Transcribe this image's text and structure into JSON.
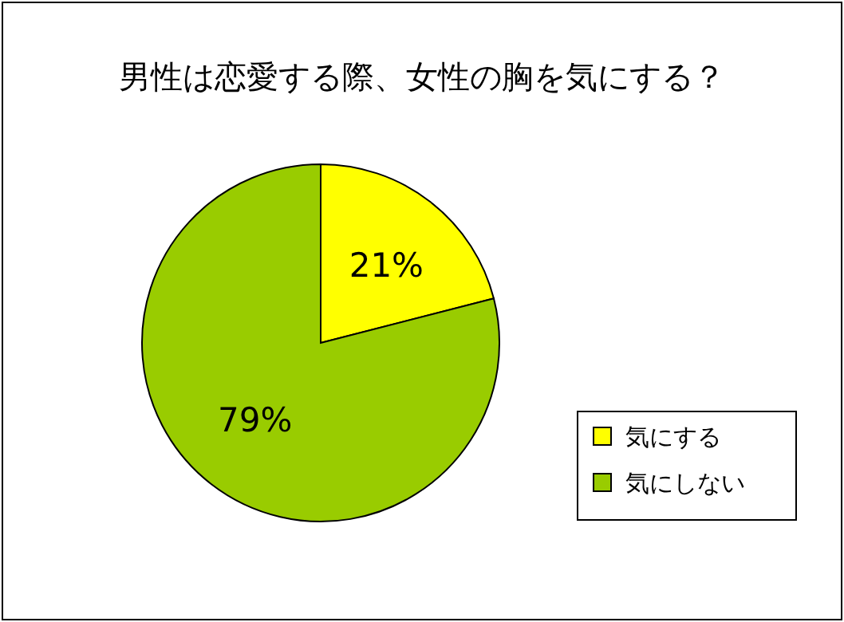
{
  "chart_data": {
    "type": "pie",
    "title": "男性は恋愛する際、女性の胸を気にする？",
    "categories": [
      "気にする",
      "気にしない"
    ],
    "values": [
      21,
      79
    ],
    "colors": [
      "#ffff00",
      "#99cc00"
    ],
    "value_labels": [
      "21%",
      "79%"
    ],
    "legend": "right"
  }
}
